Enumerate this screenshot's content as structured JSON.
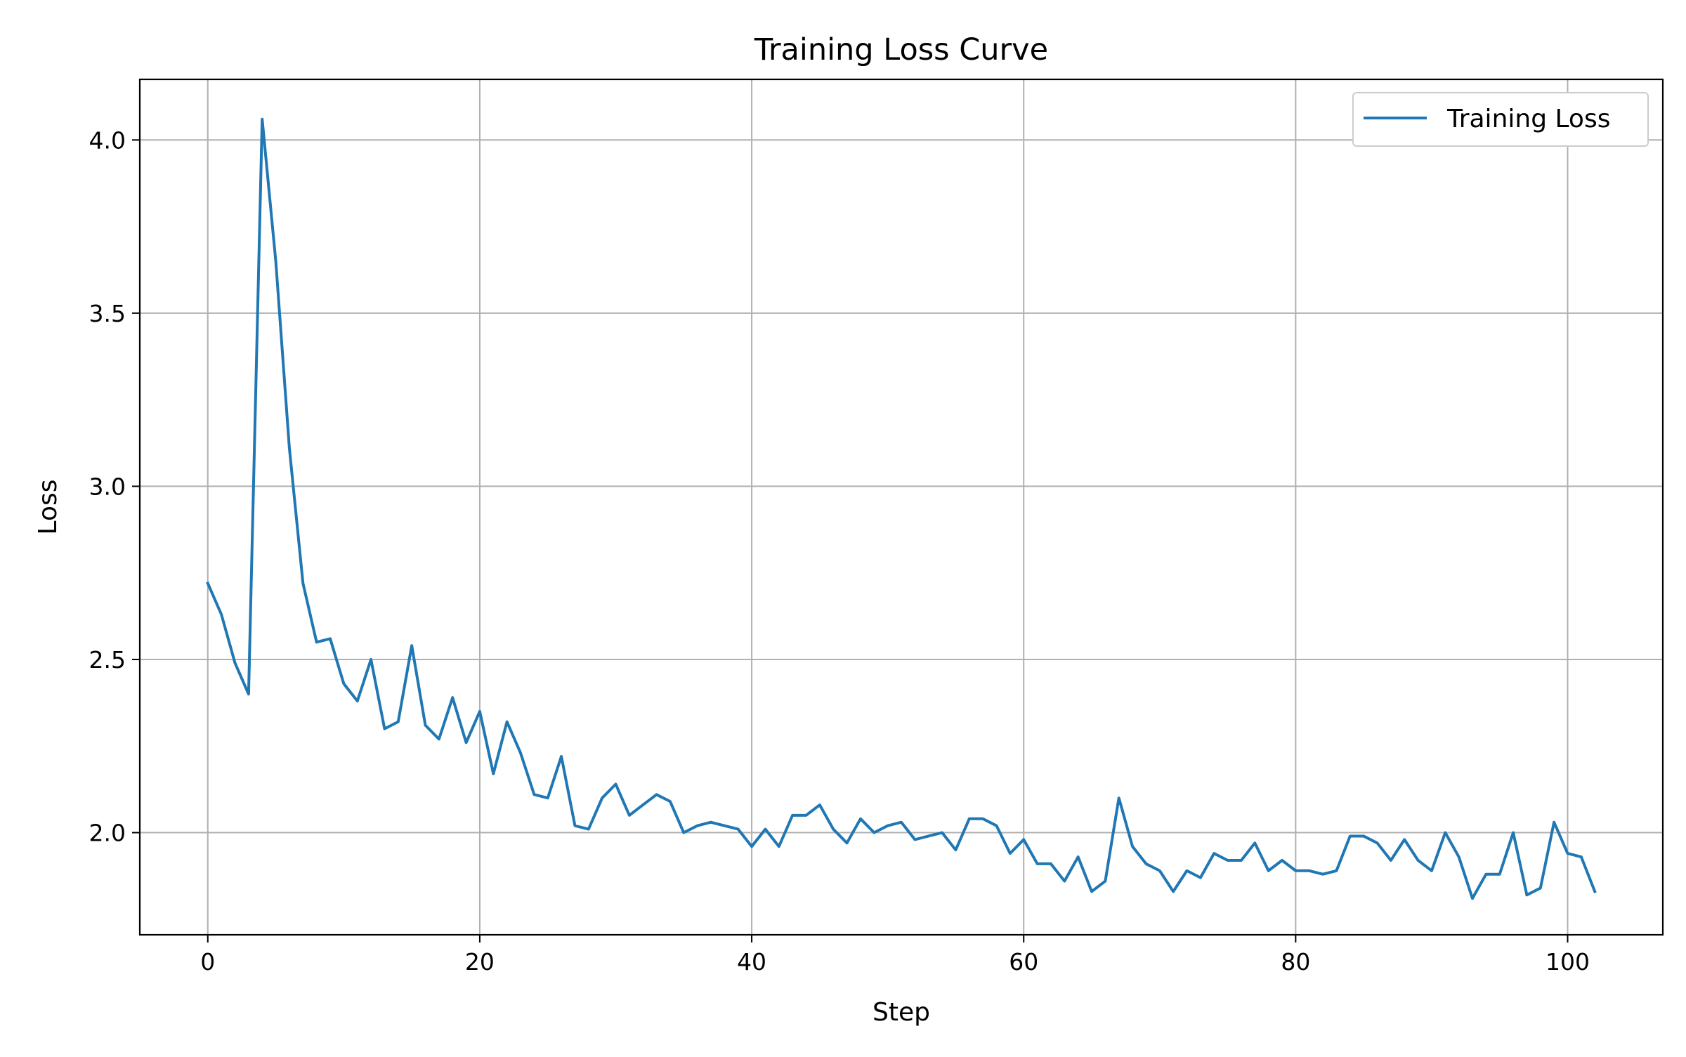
{
  "chart_data": {
    "type": "line",
    "title": "Training Loss Curve",
    "xlabel": "Step",
    "ylabel": "Loss",
    "xlim": [
      -5,
      107
    ],
    "ylim": [
      1.705,
      4.175
    ],
    "xticks": [
      0,
      20,
      40,
      60,
      80,
      100
    ],
    "yticks": [
      2.0,
      2.5,
      3.0,
      3.5,
      4.0
    ],
    "grid": true,
    "legend_position": "top-right",
    "series": [
      {
        "name": "Training Loss",
        "color": "#1f77b4",
        "x": [
          0,
          1,
          2,
          3,
          4,
          5,
          6,
          7,
          8,
          9,
          10,
          11,
          12,
          13,
          14,
          15,
          16,
          17,
          18,
          19,
          20,
          21,
          22,
          23,
          24,
          25,
          26,
          27,
          28,
          29,
          30,
          31,
          32,
          33,
          34,
          35,
          36,
          37,
          38,
          39,
          40,
          41,
          42,
          43,
          44,
          45,
          46,
          47,
          48,
          49,
          50,
          51,
          52,
          53,
          54,
          55,
          56,
          57,
          58,
          59,
          60,
          61,
          62,
          63,
          64,
          65,
          66,
          67,
          68,
          69,
          70,
          71,
          72,
          73,
          74,
          75,
          76,
          77,
          78,
          79,
          80,
          81,
          82,
          83,
          84,
          85,
          86,
          87,
          88,
          89,
          90,
          91,
          92,
          93,
          94,
          95,
          96,
          97,
          98,
          99,
          100,
          101,
          102
        ],
        "y": [
          2.72,
          2.63,
          2.49,
          2.4,
          4.06,
          3.65,
          3.11,
          2.72,
          2.55,
          2.56,
          2.43,
          2.38,
          2.5,
          2.3,
          2.32,
          2.54,
          2.31,
          2.27,
          2.39,
          2.26,
          2.35,
          2.17,
          2.32,
          2.23,
          2.11,
          2.1,
          2.22,
          2.02,
          2.01,
          2.1,
          2.14,
          2.05,
          2.08,
          2.11,
          2.09,
          2.0,
          2.02,
          2.03,
          2.02,
          2.01,
          1.96,
          2.01,
          1.96,
          2.05,
          2.05,
          2.08,
          2.01,
          1.97,
          2.04,
          2.0,
          2.02,
          2.03,
          1.98,
          1.99,
          2.0,
          1.95,
          2.04,
          2.04,
          2.02,
          1.94,
          1.98,
          1.91,
          1.91,
          1.86,
          1.93,
          1.83,
          1.86,
          2.1,
          1.96,
          1.91,
          1.89,
          1.83,
          1.89,
          1.87,
          1.94,
          1.92,
          1.92,
          1.97,
          1.89,
          1.92,
          1.89,
          1.89,
          1.88,
          1.89,
          1.99,
          1.99,
          1.97,
          1.92,
          1.98,
          1.92,
          1.89,
          2.0,
          1.93,
          1.81,
          1.88,
          1.88,
          2.0,
          1.82,
          1.84,
          2.03,
          1.94,
          1.93,
          1.83
        ]
      }
    ]
  }
}
